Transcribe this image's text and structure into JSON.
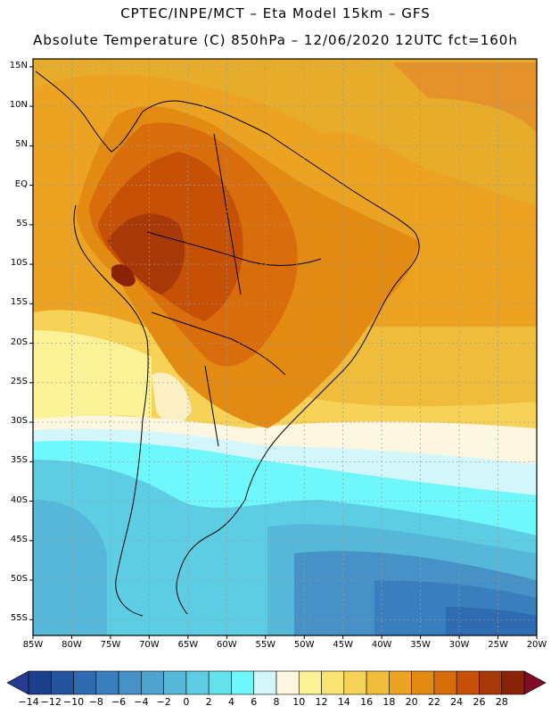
{
  "header": {
    "line1": "CPTEC/INPE/MCT –  Eta Model 15km – GFS",
    "line2": "Absolute Temperature (C) 850hPa – 12/06/2020 12UTC fct=160h"
  },
  "map": {
    "region": "South America",
    "lat_labels": [
      "15N",
      "10N",
      "5N",
      "EQ",
      "5S",
      "10S",
      "15S",
      "20S",
      "25S",
      "30S",
      "35S",
      "40S",
      "45S",
      "50S",
      "55S"
    ],
    "lon_labels": [
      "85W",
      "80W",
      "75W",
      "70W",
      "65W",
      "60W",
      "55W",
      "50W",
      "45W",
      "40W",
      "35W",
      "30W",
      "25W",
      "20W"
    ],
    "lon_range": [
      -85,
      -20
    ],
    "lat_range": [
      -57,
      16
    ]
  },
  "colorbar": {
    "labels": [
      "-14",
      "-12",
      "-10",
      "-8",
      "-6",
      "-4",
      "-2",
      "0",
      "2",
      "4",
      "6",
      "8",
      "10",
      "12",
      "14",
      "16",
      "18",
      "20",
      "22",
      "24",
      "26",
      "28"
    ],
    "colors": [
      "#1b3f8b",
      "#2454a0",
      "#2e6bb0",
      "#3a7fbd",
      "#4691c6",
      "#4fa3cf",
      "#55b8d9",
      "#5ccde3",
      "#63e2ec",
      "#6ff8fb",
      "#d3f6fb",
      "#fdf6e0",
      "#fbf297",
      "#f9e373",
      "#f6d257",
      "#efbc3b",
      "#eba321",
      "#e28a12",
      "#d96c0b",
      "#c55006",
      "#a73908",
      "#8a2207"
    ],
    "under_color": "#283a92",
    "over_color": "#7f0b24"
  }
}
